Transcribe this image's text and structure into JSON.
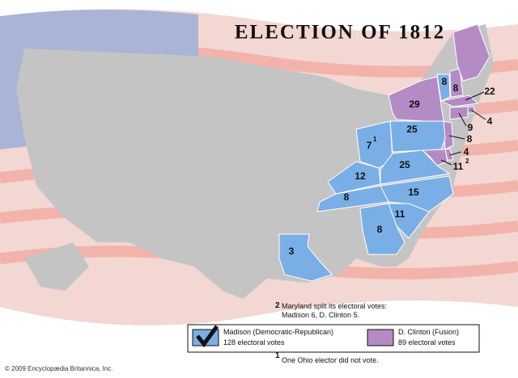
{
  "title": "ELECTION OF 1812",
  "legend": [
    {
      "name": "Madison (Democratic-Republican)",
      "votes": "128 electoral votes",
      "color": "#7aaee6"
    },
    {
      "name": "D. Clinton (Fusion)",
      "votes": "89 electoral votes",
      "color": "#b48bc4"
    }
  ],
  "states": [
    {
      "votes": 8,
      "color": "#7aaee6"
    },
    {
      "votes": 8,
      "color": "#b48bc4"
    },
    {
      "votes": 22,
      "color": "#b48bc4"
    },
    {
      "votes": 29,
      "color": "#b48bc4"
    },
    {
      "votes": 4,
      "color": "#b48bc4"
    },
    {
      "votes": 9,
      "color": "#b48bc4"
    },
    {
      "votes": 8,
      "color": "#b48bc4"
    },
    {
      "votes": 4,
      "color": "#b48bc4"
    },
    {
      "votes": 11,
      "note": "2",
      "color": "#b48bc4"
    },
    {
      "votes": 25,
      "color": "#7aaee6"
    },
    {
      "votes": 7,
      "note": "1",
      "color": "#7aaee6"
    },
    {
      "votes": 25,
      "color": "#7aaee6"
    },
    {
      "votes": 12,
      "color": "#7aaee6"
    },
    {
      "votes": 8,
      "color": "#7aaee6"
    },
    {
      "votes": 15,
      "color": "#7aaee6"
    },
    {
      "votes": 11,
      "color": "#7aaee6"
    },
    {
      "votes": 8,
      "color": "#7aaee6"
    },
    {
      "votes": 3,
      "color": "#7aaee6"
    }
  ],
  "footnotes": [
    {
      "mark": "2",
      "text": "Maryland split its electoral votes: Madison 6, D. Clinton 5."
    },
    {
      "mark": "1",
      "text": "One Ohio elector did not vote."
    }
  ],
  "copyright": "© 2009 Encyclopædia Britannica, Inc."
}
